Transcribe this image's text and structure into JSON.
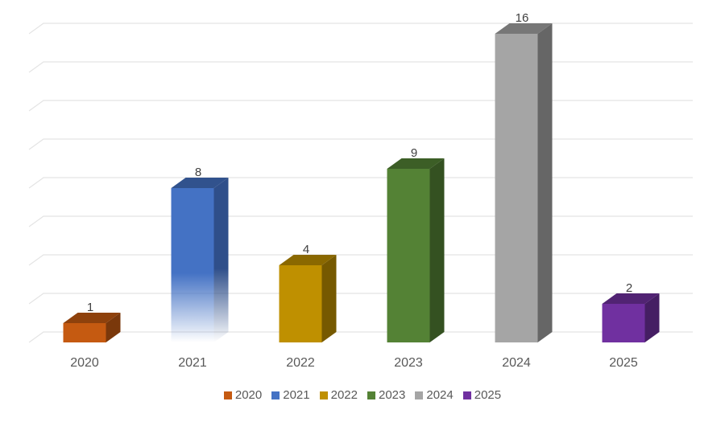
{
  "chart_data": {
    "type": "bar",
    "title": "",
    "xlabel": "",
    "ylabel": "",
    "categories": [
      "2020",
      "2021",
      "2022",
      "2023",
      "2024",
      "2025"
    ],
    "values": [
      1,
      8,
      4,
      9,
      16,
      2
    ],
    "ylim": [
      0,
      16
    ],
    "grid": true,
    "legend_position": "bottom",
    "style": "3d-column",
    "colors": [
      "#c55a11",
      "#4472c4",
      "#bf9000",
      "#548235",
      "#a5a5a5",
      "#7030a0"
    ],
    "legend": [
      "2020",
      "2021",
      "2022",
      "2023",
      "2024",
      "2025"
    ]
  }
}
